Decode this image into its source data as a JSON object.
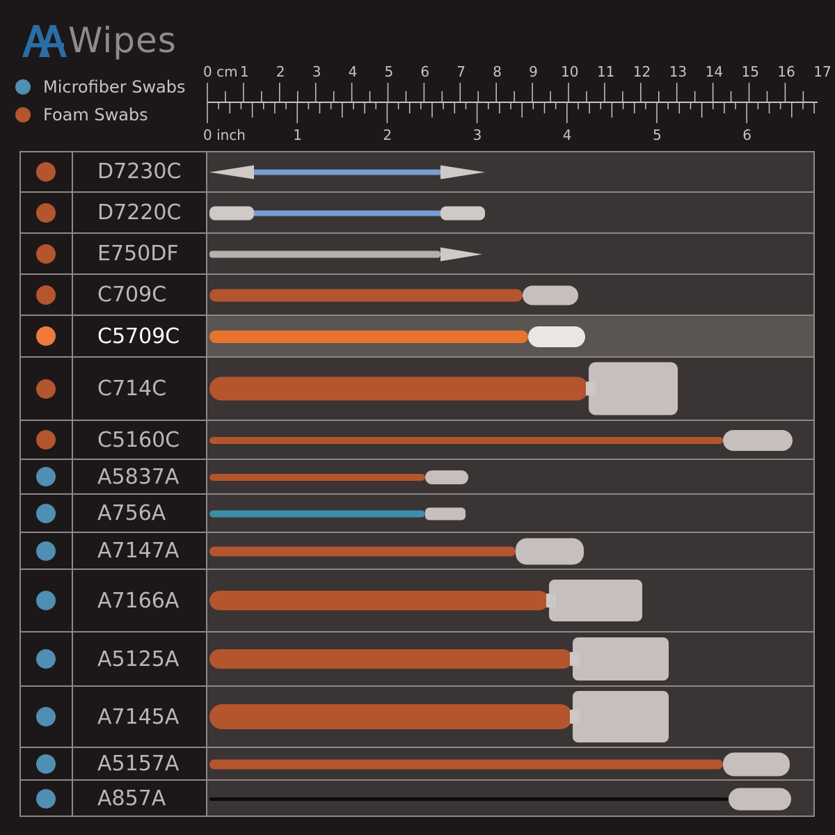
{
  "brand": {
    "logo_text": "Wipes",
    "logo_mark": "AA"
  },
  "legend": [
    {
      "label": "Microfiber Swabs",
      "color": "#4f8fb4"
    },
    {
      "label": "Foam Swabs",
      "color": "#b4552e"
    }
  ],
  "ruler": {
    "cm_label": "0 cm",
    "cm_ticks": [
      "1",
      "2",
      "3",
      "4",
      "5",
      "6",
      "7",
      "8",
      "9",
      "10",
      "11",
      "12",
      "13",
      "14",
      "15",
      "16",
      "17"
    ],
    "inch_label": "0 inch",
    "inch_ticks": [
      "1",
      "2",
      "3",
      "4",
      "5",
      "6"
    ]
  },
  "colors": {
    "background": "#1c1819",
    "grid_line": "#8d8888",
    "panel": "#3a3435",
    "highlight_panel": "#5a5453",
    "foam_dot": "#b4552e",
    "microfiber_dot": "#4f8fb4",
    "highlight_dot": "#f07a3e"
  },
  "swabs": [
    {
      "model": "D7230C",
      "type": "Foam Swabs",
      "icon": "double-ended-pointed-swab"
    },
    {
      "model": "D7220C",
      "type": "Foam Swabs",
      "icon": "double-ended-flat-swab"
    },
    {
      "model": "E750DF",
      "type": "Foam Swabs",
      "icon": "pointed-swab"
    },
    {
      "model": "C709C",
      "type": "Foam Swabs",
      "icon": "round-tip-swab"
    },
    {
      "model": "C5709C",
      "type": "Foam Swabs",
      "icon": "round-tip-swab",
      "highlighted": true
    },
    {
      "model": "C714C",
      "type": "Foam Swabs",
      "icon": "wide-head-swab"
    },
    {
      "model": "C5160C",
      "type": "Foam Swabs",
      "icon": "long-round-tip-swab"
    },
    {
      "model": "A5837A",
      "type": "Microfiber Swabs",
      "icon": "small-tip-swab"
    },
    {
      "model": "A756A",
      "type": "Microfiber Swabs",
      "icon": "small-tip-swab"
    },
    {
      "model": "A7147A",
      "type": "Microfiber Swabs",
      "icon": "round-tip-swab"
    },
    {
      "model": "A7166A",
      "type": "Microfiber Swabs",
      "icon": "wide-head-swab"
    },
    {
      "model": "A5125A",
      "type": "Microfiber Swabs",
      "icon": "wide-head-swab"
    },
    {
      "model": "A7145A",
      "type": "Microfiber Swabs",
      "icon": "textured-wide-head-swab"
    },
    {
      "model": "A5157A",
      "type": "Microfiber Swabs",
      "icon": "long-round-tip-swab"
    },
    {
      "model": "A857A",
      "type": "Microfiber Swabs",
      "icon": "black-handle-swab"
    }
  ]
}
